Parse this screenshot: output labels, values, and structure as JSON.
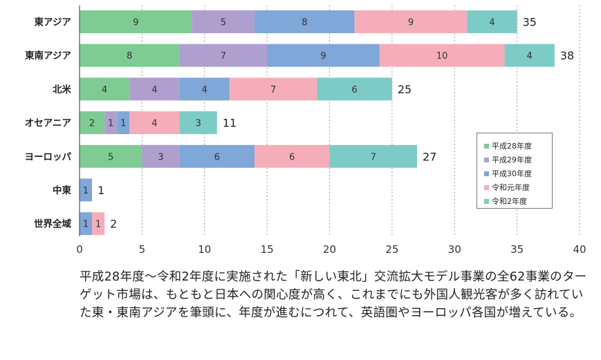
{
  "chart_data": {
    "type": "bar",
    "orientation": "horizontal",
    "stacked": true,
    "categories": [
      "東アジア",
      "東南アジア",
      "北米",
      "オセアニア",
      "ヨーロッパ",
      "中東",
      "世界全域"
    ],
    "series": [
      {
        "name": "平成28年度",
        "color": "#7ecb93",
        "values": [
          9,
          8,
          4,
          2,
          5,
          0,
          0
        ]
      },
      {
        "name": "平成29年度",
        "color": "#ae9fcf",
        "values": [
          5,
          7,
          4,
          1,
          3,
          0,
          0
        ]
      },
      {
        "name": "平成30年度",
        "color": "#7fa7d8",
        "values": [
          8,
          9,
          4,
          1,
          6,
          1,
          1
        ]
      },
      {
        "name": "令和元年度",
        "color": "#f6adba",
        "values": [
          9,
          10,
          7,
          4,
          6,
          0,
          1
        ]
      },
      {
        "name": "令和2年度",
        "color": "#7dcbc6",
        "values": [
          4,
          4,
          6,
          3,
          7,
          0,
          0
        ]
      }
    ],
    "totals": [
      35,
      38,
      25,
      11,
      27,
      1,
      2
    ],
    "xlim": [
      0,
      40
    ],
    "xticks": [
      0,
      5,
      10,
      15,
      20,
      25,
      30,
      35,
      40
    ],
    "grid": "vertical-dashed",
    "legend_position": "right"
  },
  "caption": "平成28年度〜令和2年度に実施された「新しい東北」交流拡大モデル事業の全62事業のターゲット市場は、もともと日本への関心度が高く、これまでにも外国人観光客が多く訪れていた東・東南アジアを筆頭に、年度が進むにつれて、英語圏やヨーロッパ各国が増えている。"
}
